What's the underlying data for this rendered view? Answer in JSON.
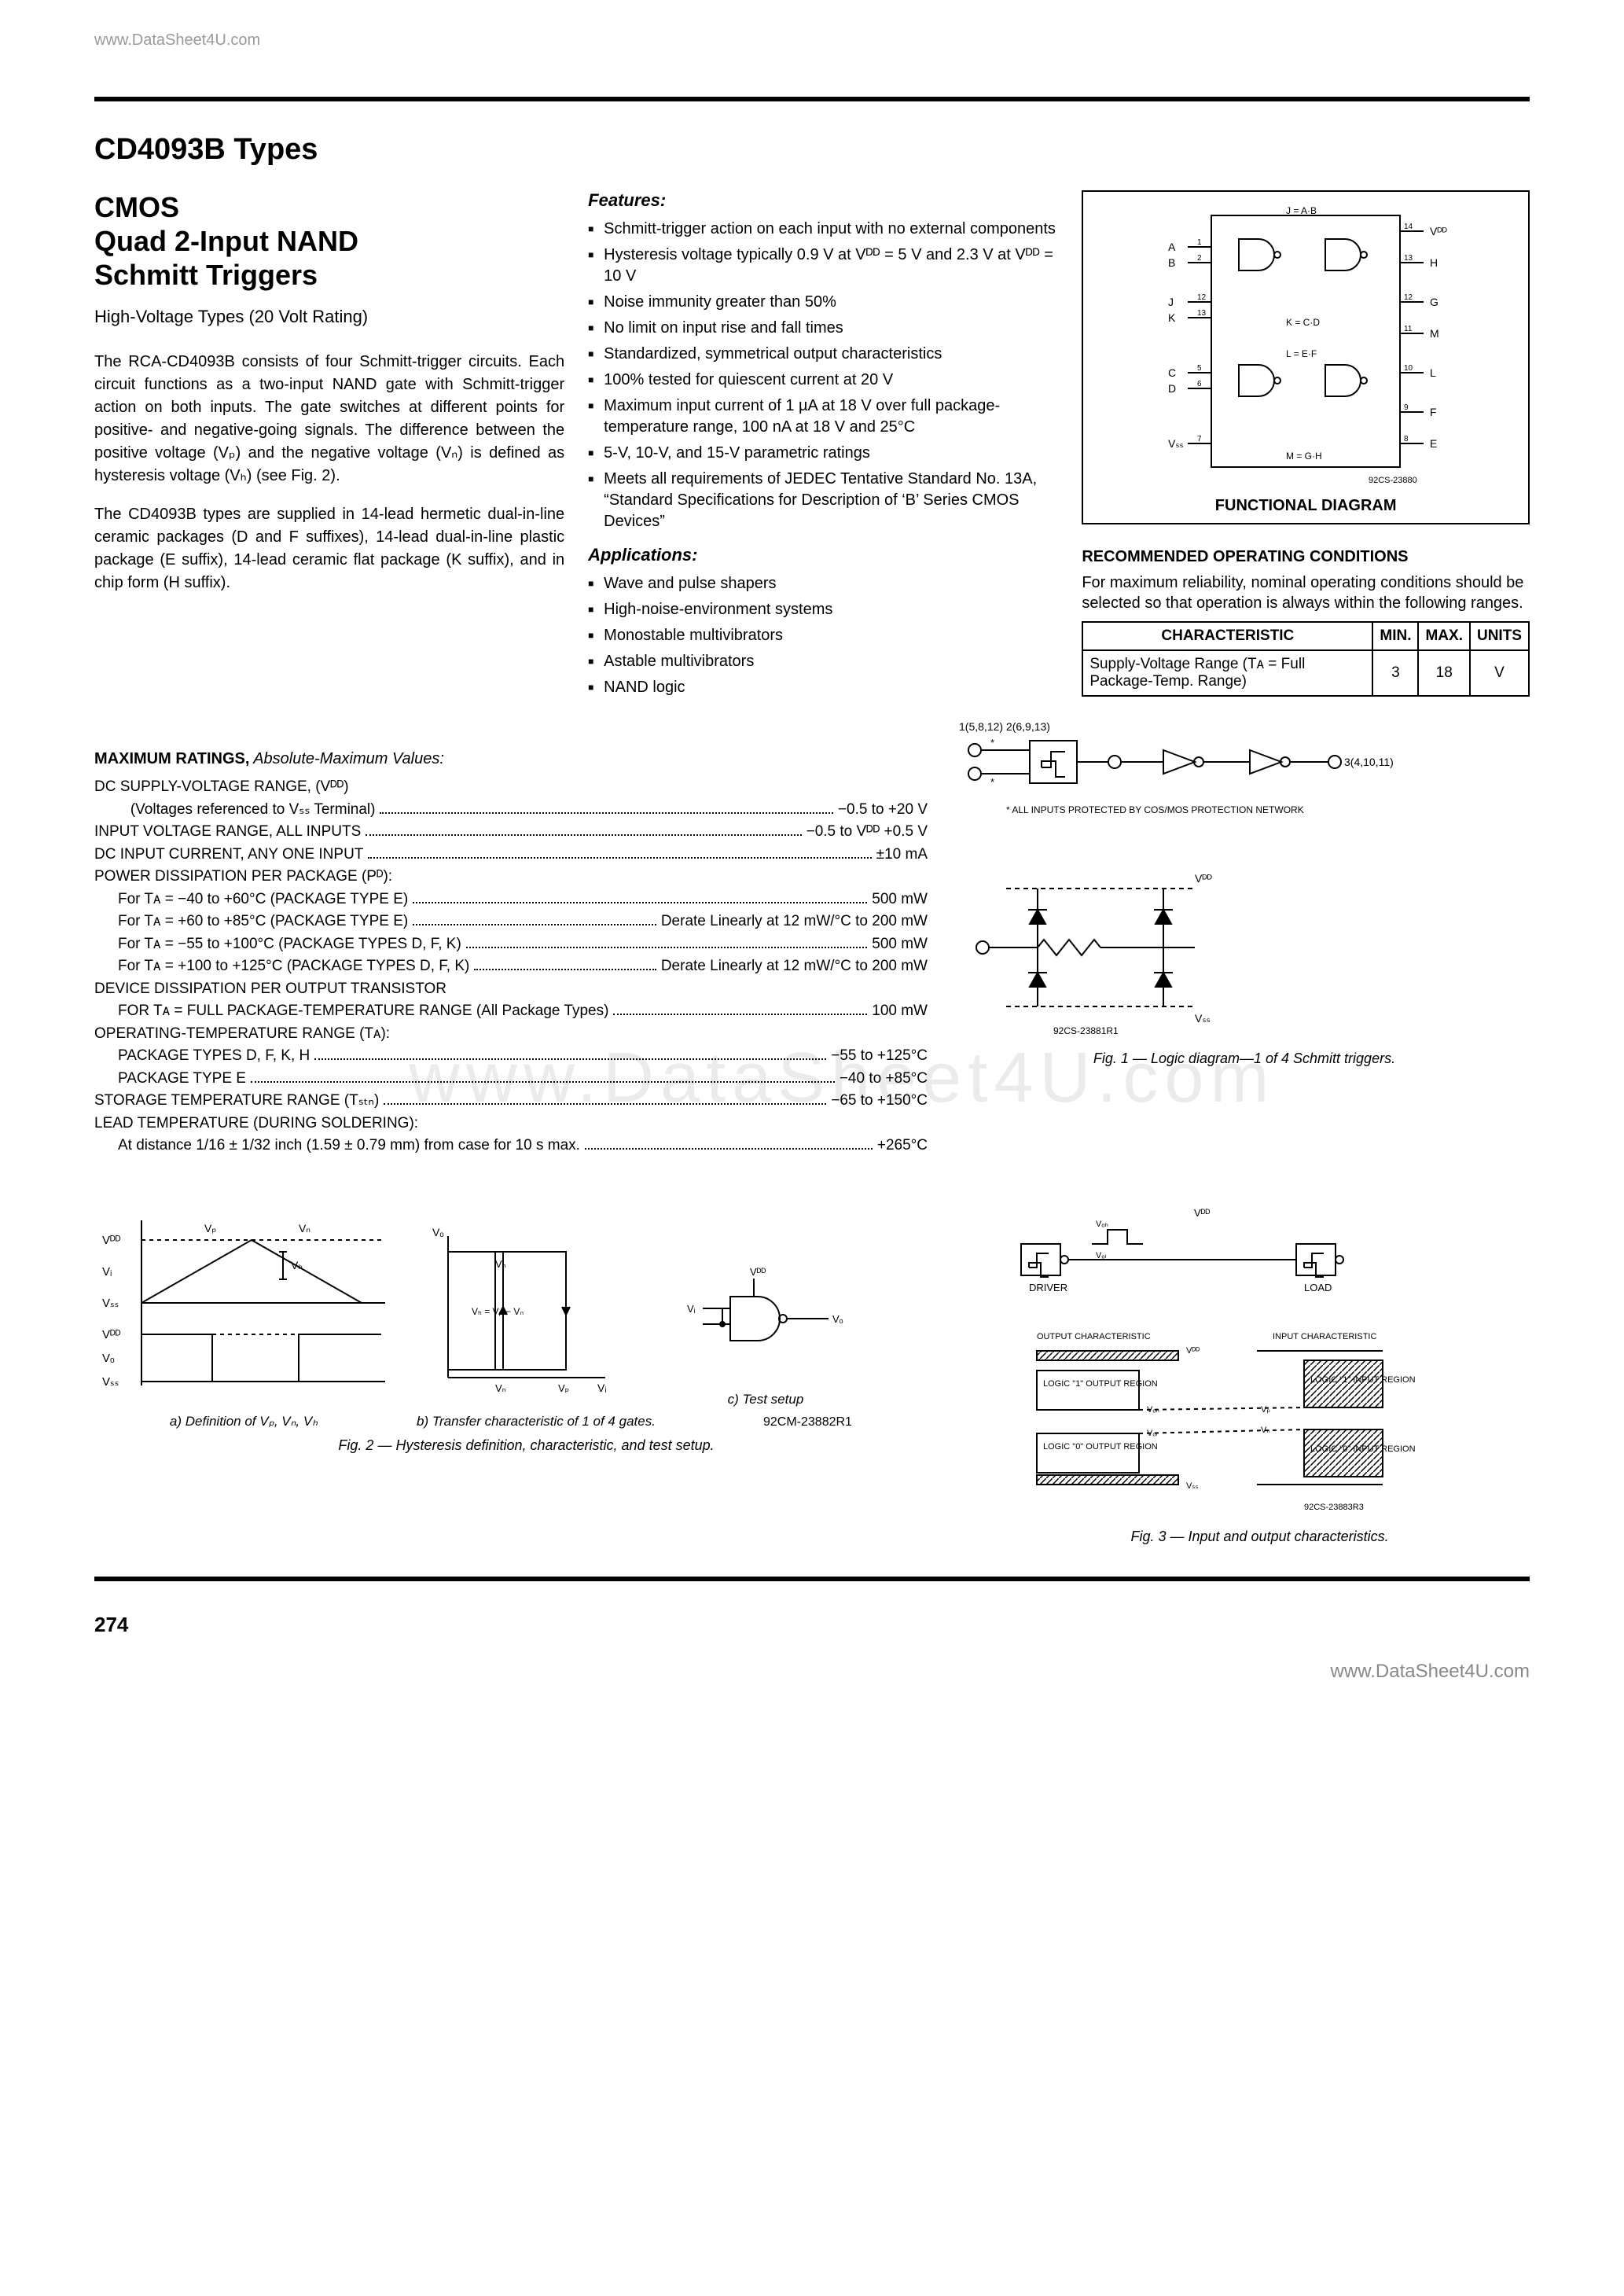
{
  "watermark": {
    "top": "www.DataSheet4U.com",
    "bottom": "www.DataSheet4U.com",
    "center": "www.DataSheet4U.com"
  },
  "page_title": "CD4093B Types",
  "heading_lines": {
    "l1": "CMOS",
    "l2": "Quad 2-Input NAND",
    "l3": "Schmitt Triggers"
  },
  "subtitle": "High-Voltage Types (20 Volt Rating)",
  "intro_p1": "The RCA-CD4093B consists of four Schmitt-trigger circuits. Each circuit functions as a two-input NAND gate with Schmitt-trigger action on both inputs. The gate switches at different points for positive- and negative-going signals. The difference between the positive voltage (Vₚ) and the negative voltage (Vₙ) is defined as hysteresis voltage (Vₕ) (see Fig. 2).",
  "intro_p2": "The CD4093B types are supplied in 14-lead hermetic dual-in-line ceramic packages (D and F suffixes), 14-lead dual-in-line plastic package (E suffix), 14-lead ceramic flat package (K suffix), and in chip form (H suffix).",
  "features_label": "Features:",
  "features": [
    "Schmitt-trigger action on each input with no external components",
    "Hysteresis voltage typically 0.9 V at Vᴰᴰ = 5 V and 2.3 V at Vᴰᴰ = 10 V",
    "Noise immunity greater than 50%",
    "No limit on input rise and fall times",
    "Standardized, symmetrical output characteristics",
    "100% tested for quiescent current at 20 V",
    "Maximum input current of 1 µA at 18 V over full package-temperature range, 100 nA at 18 V and 25°C",
    "5-V, 10-V, and 15-V parametric ratings",
    "Meets all requirements of JEDEC Tentative Standard No. 13A, “Standard Specifications for Description of ‘B’ Series CMOS Devices”"
  ],
  "applications_label": "Applications:",
  "applications": [
    "Wave and pulse shapers",
    "High-noise-environment systems",
    "Monostable multivibrators",
    "Astable multivibrators",
    "NAND logic"
  ],
  "functional_diagram": {
    "caption": "FUNCTIONAL DIAGRAM",
    "ref": "92CS-23880",
    "pins_left": [
      {
        "num": "1",
        "name": "A"
      },
      {
        "num": "2",
        "name": "B"
      },
      {
        "num": "12",
        "name": "J"
      },
      {
        "num": "13",
        "name": "K"
      },
      {
        "num": "5",
        "name": "C"
      },
      {
        "num": "6",
        "name": "D"
      },
      {
        "num": "7",
        "name": "Vₛₛ"
      }
    ],
    "pins_right": [
      {
        "num": "14",
        "name": "Vᴰᴰ"
      },
      {
        "num": "13",
        "name": "H"
      },
      {
        "num": "12",
        "name": "G"
      },
      {
        "num": "11",
        "name": "M"
      },
      {
        "num": "10",
        "name": "L"
      },
      {
        "num": "9",
        "name": "F"
      },
      {
        "num": "8",
        "name": "E"
      }
    ],
    "gate_labels": [
      "J = A·B",
      "K = C·D",
      "L = E·F",
      "M = G·H"
    ]
  },
  "rec_cond": {
    "title": "RECOMMENDED OPERATING CONDITIONS",
    "text": "For maximum reliability, nominal operating conditions should be selected so that operation is always within the following ranges.",
    "headers": [
      "CHARACTERISTIC",
      "MIN.",
      "MAX.",
      "UNITS"
    ],
    "row": {
      "char": "Supply-Voltage Range (Tᴀ = Full Package-Temp. Range)",
      "min": "3",
      "max": "18",
      "units": "V"
    }
  },
  "max_ratings": {
    "title_bold": "MAXIMUM RATINGS,",
    "title_italic": " Absolute-Maximum Values:",
    "rows": [
      {
        "label": "DC SUPPLY-VOLTAGE RANGE, (Vᴰᴰ)",
        "value": ""
      },
      {
        "label": "   (Voltages referenced to Vₛₛ Terminal)",
        "value": "−0.5 to +20 V",
        "indent": true
      },
      {
        "label": "INPUT VOLTAGE RANGE, ALL INPUTS",
        "value": "−0.5 to Vᴰᴰ +0.5 V"
      },
      {
        "label": "DC INPUT CURRENT, ANY ONE INPUT",
        "value": "±10 mA"
      },
      {
        "label": "POWER DISSIPATION PER PACKAGE (Pᴰ):",
        "value": ""
      },
      {
        "label": "For Tᴀ = −40 to +60°C (PACKAGE TYPE E)",
        "value": "500 mW",
        "indent": true
      },
      {
        "label": "For Tᴀ = +60 to +85°C (PACKAGE TYPE E)",
        "value": "Derate Linearly at 12 mW/°C to 200 mW",
        "indent": true
      },
      {
        "label": "For Tᴀ = −55 to +100°C (PACKAGE TYPES D, F, K)",
        "value": "500 mW",
        "indent": true
      },
      {
        "label": "For Tᴀ = +100 to +125°C (PACKAGE TYPES D, F, K)",
        "value": "Derate Linearly at 12 mW/°C to 200 mW",
        "indent": true
      },
      {
        "label": "DEVICE DISSIPATION PER OUTPUT TRANSISTOR",
        "value": ""
      },
      {
        "label": "FOR Tᴀ = FULL PACKAGE-TEMPERATURE RANGE (All Package Types)",
        "value": "100 mW",
        "indent": true
      },
      {
        "label": "OPERATING-TEMPERATURE RANGE (Tᴀ):",
        "value": ""
      },
      {
        "label": "PACKAGE TYPES D, F, K, H",
        "value": "−55 to +125°C",
        "indent": true
      },
      {
        "label": "PACKAGE TYPE E",
        "value": "−40 to +85°C",
        "indent": true
      },
      {
        "label": "STORAGE TEMPERATURE RANGE (Tₛₜₙ)",
        "value": "−65 to +150°C"
      },
      {
        "label": "LEAD TEMPERATURE (DURING SOLDERING):",
        "value": ""
      },
      {
        "label": "At distance 1/16 ± 1/32 inch (1.59 ± 0.79 mm) from case for 10 s max.",
        "value": "+265°C",
        "indent": true
      }
    ]
  },
  "fig1": {
    "caption": "Fig. 1 — Logic diagram—1 of 4 Schmitt triggers.",
    "ref": "92CS-23881R1",
    "pins_in": "1(5,8,12)\n2(6,9,13)",
    "pin_out": "3(4,10,11)",
    "note": "* ALL INPUTS PROTECTED BY COS/MOS PROTECTION NETWORK",
    "vdd": "Vᴰᴰ",
    "vss": "Vₛₛ"
  },
  "fig2": {
    "caption": "Fig. 2 — Hysteresis definition, characteristic, and test setup.",
    "ref": "92CM-23882R1",
    "sub_a": "a) Definition of Vₚ, Vₙ, Vₕ",
    "sub_b": "b) Transfer characteristic of 1 of 4 gates.",
    "sub_c": "c) Test setup",
    "labels": {
      "vdd": "Vᴰᴰ",
      "vo": "Vₒ",
      "vss": "Vₛₛ",
      "vi": "Vᵢ",
      "vp": "Vₚ",
      "vn": "Vₙ",
      "vh": "Vₕ",
      "diff": "Vₕ = Vₚ − Vₙ"
    }
  },
  "fig3": {
    "caption": "Fig. 3 — Input and output characteristics.",
    "ref": "92CS-23883R3",
    "labels": {
      "voh": "Vₒₕ",
      "vol": "Vₒₗ",
      "driver": "DRIVER",
      "load": "LOAD",
      "out_char": "OUTPUT CHARACTERISTIC",
      "in_char": "INPUT CHARACTERISTIC",
      "logic1out": "LOGIC \"1\" OUTPUT REGION",
      "logic0out": "LOGIC \"0\" OUTPUT REGION",
      "logic1in": "LOGIC \"1\" INPUT REGION",
      "logic0in": "LOGIC \"0\" INPUT REGION",
      "vdd": "Vᴰᴰ",
      "vss": "Vₛₛ",
      "vp": "Vₚ",
      "vn": "Vₙ"
    }
  },
  "page_number": "274"
}
